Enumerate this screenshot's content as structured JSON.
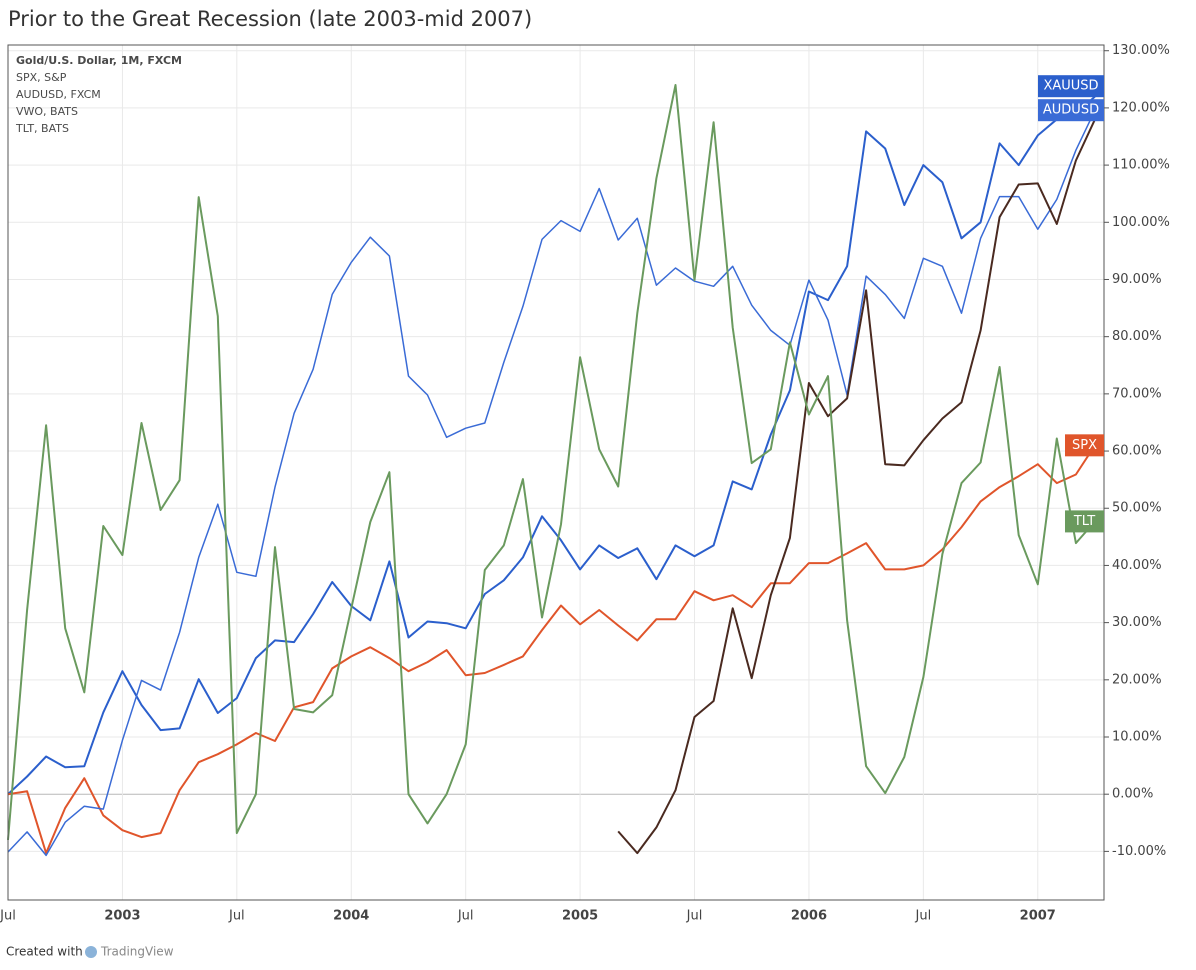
{
  "chart_data": {
    "type": "line",
    "title": "Prior to the Great Recession (late 2003-mid 2007)",
    "categories": [
      "Jul",
      null,
      null,
      null,
      null,
      null,
      "2003",
      null,
      null,
      null,
      null,
      null,
      "Jul",
      null,
      null,
      null,
      null,
      null,
      "2004",
      null,
      null,
      null,
      null,
      null,
      "Jul",
      null,
      null,
      null,
      null,
      null,
      "2005",
      null,
      null,
      null,
      null,
      null,
      "Jul",
      null,
      null,
      null,
      null,
      null,
      "2006",
      null,
      null,
      null,
      null,
      null,
      "Jul",
      null,
      null,
      null,
      null,
      null,
      "2007",
      null,
      null,
      null
    ],
    "ylim": [
      -18.5,
      131
    ],
    "yticks": [
      {
        "value": -10,
        "label": "-10.00%"
      },
      {
        "value": 0,
        "label": "0.00%"
      },
      {
        "value": 10,
        "label": "10.00%"
      },
      {
        "value": 20,
        "label": "20.00%"
      },
      {
        "value": 30,
        "label": "30.00%"
      },
      {
        "value": 40,
        "label": "40.00%"
      },
      {
        "value": 50,
        "label": "50.00%"
      },
      {
        "value": 60,
        "label": "60.00%"
      },
      {
        "value": 70,
        "label": "70.00%"
      },
      {
        "value": 80,
        "label": "80.00%"
      },
      {
        "value": 90,
        "label": "90.00%"
      },
      {
        "value": 100,
        "label": "100.00%"
      },
      {
        "value": 110,
        "label": "110.00%"
      },
      {
        "value": 120,
        "label": "120.00%"
      },
      {
        "value": 130,
        "label": "130.00%"
      }
    ],
    "grid": true,
    "series": [
      {
        "name": "Gold/U.S. Dollar, 1M, FXCM",
        "tag": "XAUUSD",
        "color": "#2b5fcc",
        "width": 2,
        "values": [
          0,
          3.1,
          6.6,
          4.7,
          4.9,
          14.3,
          21.5,
          15.6,
          11.2,
          11.5,
          20.1,
          14.2,
          16.8,
          23.8,
          26.9,
          26.6,
          31.5,
          37.1,
          32.9,
          30.4,
          40.7,
          27.4,
          30.2,
          29.9,
          29.0,
          35.0,
          37.4,
          41.4,
          48.6,
          44.4,
          39.3,
          43.5,
          41.3,
          43.0,
          37.6,
          43.5,
          41.6,
          43.5,
          54.7,
          53.3,
          62.9,
          70.6,
          87.9,
          86.4,
          92.3,
          115.9,
          112.9,
          103.0,
          110.0,
          107.0,
          97.2,
          100.0,
          113.8,
          110.0,
          115.2,
          118,
          119,
          122
        ]
      },
      {
        "name": "SPX, S&P",
        "tag": "SPX",
        "color": "#e0552b",
        "width": 2,
        "values": [
          0,
          0.5,
          -10.3,
          -2.4,
          2.8,
          -3.7,
          -6.3,
          -7.5,
          -6.8,
          0.7,
          5.6,
          7.0,
          8.7,
          10.7,
          9.3,
          15.2,
          16.1,
          22.0,
          24.1,
          25.7,
          23.8,
          21.5,
          23.1,
          25.2,
          20.8,
          21.2,
          22.6,
          24.1,
          28.7,
          33.0,
          29.7,
          32.2,
          29.5,
          26.9,
          30.6,
          30.6,
          35.5,
          33.9,
          34.8,
          32.7,
          36.9,
          36.9,
          40.4,
          40.4,
          42.1,
          43.9,
          39.3,
          39.3,
          40.0,
          42.8,
          46.7,
          51.2,
          53.7,
          55.6,
          57.7,
          54.4,
          55.9,
          61.0
        ]
      },
      {
        "name": "AUDUSD, FXCM",
        "tag": "AUDUSD",
        "color": "#3a6bd6",
        "width": 1.5,
        "values": [
          -10.1,
          -6.6,
          -10.7,
          -4.9,
          -2.1,
          -2.6,
          9.4,
          19.9,
          18.2,
          28.3,
          41.4,
          50.7,
          38.8,
          38.1,
          53.7,
          66.6,
          74.3,
          87.4,
          93.0,
          97.4,
          94.1,
          73.1,
          69.8,
          62.4,
          64.0,
          64.9,
          75.5,
          85.3,
          97.0,
          100.3,
          98.4,
          105.9,
          96.9,
          100.7,
          89.0,
          92.0,
          89.7,
          88.8,
          92.3,
          85.5,
          81.1,
          78.5,
          89.9,
          82.9,
          69.8,
          90.6,
          87.4,
          83.2,
          93.7,
          92.3,
          84.1,
          97.2,
          104.5,
          104.5,
          98.8,
          104,
          112.6,
          119.6
        ]
      },
      {
        "name": "VWO, BATS",
        "color": "#4a2a20",
        "width": 2,
        "values": [
          null,
          null,
          null,
          null,
          null,
          null,
          null,
          null,
          null,
          null,
          null,
          null,
          null,
          null,
          null,
          null,
          null,
          null,
          null,
          null,
          null,
          null,
          null,
          null,
          null,
          null,
          null,
          null,
          null,
          null,
          null,
          null,
          -6.5,
          -10.3,
          -5.8,
          0.7,
          13.5,
          16.3,
          32.5,
          20.3,
          34.8,
          44.8,
          71.9,
          66.1,
          69.2,
          88.1,
          57.7,
          57.5,
          61.9,
          65.7,
          68.5,
          81.1,
          100.9,
          106.6,
          106.8,
          99.7,
          110.8,
          118
        ]
      },
      {
        "name": "TLT, BATS",
        "tag": "TLT",
        "color": "#6a9a5e",
        "width": 2,
        "values": [
          -8,
          32.2,
          64.5,
          29.0,
          17.8,
          46.9,
          41.8,
          64.9,
          49.7,
          54.9,
          104.4,
          83.6,
          -6.8,
          0,
          43.2,
          14.9,
          14.3,
          17.3,
          32.5,
          47.6,
          56.3,
          0,
          -5.1,
          0,
          8.7,
          39.2,
          43.5,
          55.1,
          30.9,
          47.2,
          76.4,
          60.3,
          53.8,
          84.1,
          107.7,
          124.0,
          89.9,
          117.5,
          81.6,
          57.9,
          60.3,
          79.0,
          66.4,
          73.1,
          30.4,
          4.9,
          0.2,
          6.5,
          20.5,
          42.0,
          54.4,
          58.0,
          74.7,
          45.3,
          36.7,
          62.2,
          43.9,
          47.7
        ]
      }
    ]
  },
  "footer": {
    "prefix": "Created with",
    "brand": "TradingView"
  }
}
